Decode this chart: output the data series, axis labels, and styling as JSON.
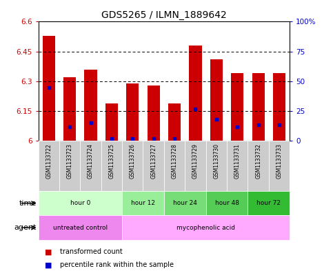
{
  "title": "GDS5265 / ILMN_1889642",
  "samples": [
    "GSM1133722",
    "GSM1133723",
    "GSM1133724",
    "GSM1133725",
    "GSM1133726",
    "GSM1133727",
    "GSM1133728",
    "GSM1133729",
    "GSM1133730",
    "GSM1133731",
    "GSM1133732",
    "GSM1133733"
  ],
  "bar_values": [
    6.53,
    6.32,
    6.36,
    6.19,
    6.29,
    6.28,
    6.19,
    6.48,
    6.41,
    6.34,
    6.34,
    6.34
  ],
  "blue_dot_values": [
    6.27,
    6.07,
    6.09,
    6.01,
    6.01,
    6.01,
    6.01,
    6.16,
    6.11,
    6.07,
    6.08,
    6.08
  ],
  "ymin": 6.0,
  "ymax": 6.6,
  "yticks": [
    6.0,
    6.15,
    6.3,
    6.45,
    6.6
  ],
  "ytick_labels": [
    "6",
    "6.15",
    "6.3",
    "6.45",
    "6.6"
  ],
  "right_ytick_pcts": [
    0,
    25,
    50,
    75,
    100
  ],
  "right_ytick_labels": [
    "0",
    "25",
    "50",
    "75",
    "100%"
  ],
  "bar_color": "#cc0000",
  "blue_dot_color": "#0000cc",
  "sample_label_bg": "#cccccc",
  "time_groups": [
    {
      "label": "hour 0",
      "start": 0,
      "end": 3,
      "color": "#ccffcc"
    },
    {
      "label": "hour 12",
      "start": 4,
      "end": 5,
      "color": "#99ee99"
    },
    {
      "label": "hour 24",
      "start": 6,
      "end": 7,
      "color": "#77dd77"
    },
    {
      "label": "hour 48",
      "start": 8,
      "end": 9,
      "color": "#55cc55"
    },
    {
      "label": "hour 72",
      "start": 10,
      "end": 11,
      "color": "#33bb33"
    }
  ],
  "agent_groups": [
    {
      "label": "untreated control",
      "start": 0,
      "end": 3,
      "color": "#ee88ee"
    },
    {
      "label": "mycophenolic acid",
      "start": 4,
      "end": 11,
      "color": "#ffaaff"
    }
  ],
  "legend_items": [
    {
      "color": "#cc0000",
      "label": "transformed count"
    },
    {
      "color": "#0000cc",
      "label": "percentile rank within the sample"
    }
  ],
  "time_label": "time",
  "agent_label": "agent",
  "left_tick_color": "#cc0000",
  "right_tick_color": "#0000cc"
}
